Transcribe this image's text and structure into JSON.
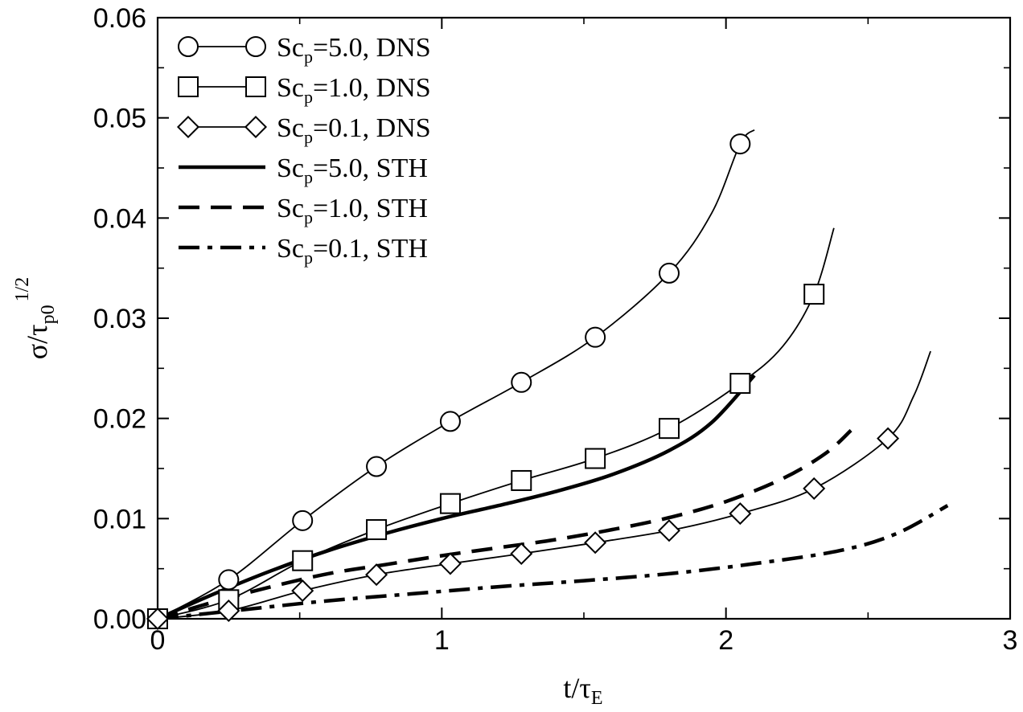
{
  "chart_data": {
    "type": "line",
    "title": "",
    "xlabel": "t/τE",
    "ylabel": "σ/τp0^1/2",
    "xlabel_parts": {
      "main": "t/τ",
      "sub": "E"
    },
    "ylabel_parts": {
      "main": "σ/τ",
      "sub": "p0",
      "sup": "1/2"
    },
    "xlim": [
      0,
      3
    ],
    "ylim": [
      0,
      0.06
    ],
    "xticks": [
      0,
      1,
      2,
      3
    ],
    "xtick_labels": [
      "0",
      "1",
      "2",
      "3"
    ],
    "yticks": [
      0,
      0.01,
      0.02,
      0.03,
      0.04,
      0.05,
      0.06
    ],
    "ytick_labels": [
      "0.00",
      "0.01",
      "0.02",
      "0.03",
      "0.04",
      "0.05",
      "0.06"
    ],
    "grid": false,
    "legend_position": "top-left",
    "series": [
      {
        "name": "Scp=5.0, DNS",
        "label_main": "Sc",
        "label_sub": "p",
        "label_rest": "=5.0, DNS",
        "marker": "circle",
        "style": "thin",
        "points": [
          [
            0,
            0
          ],
          [
            0.25,
            0.0039
          ],
          [
            0.51,
            0.0098
          ],
          [
            0.77,
            0.0152
          ],
          [
            1.03,
            0.0197
          ],
          [
            1.28,
            0.0236
          ],
          [
            1.54,
            0.0281
          ],
          [
            1.8,
            0.0345
          ],
          [
            2.05,
            0.0474
          ]
        ],
        "curve": [
          [
            0,
            0
          ],
          [
            0.25,
            0.0039
          ],
          [
            0.51,
            0.0098
          ],
          [
            0.77,
            0.0152
          ],
          [
            1.03,
            0.0197
          ],
          [
            1.28,
            0.0236
          ],
          [
            1.54,
            0.0281
          ],
          [
            1.8,
            0.0345
          ],
          [
            1.95,
            0.0405
          ],
          [
            2.05,
            0.0474
          ],
          [
            2.1,
            0.0488
          ]
        ]
      },
      {
        "name": "Scp=1.0, DNS",
        "label_main": "Sc",
        "label_sub": "p",
        "label_rest": "=1.0, DNS",
        "marker": "square",
        "style": "thin",
        "points": [
          [
            0,
            0
          ],
          [
            0.25,
            0.0019
          ],
          [
            0.51,
            0.0058
          ],
          [
            0.77,
            0.0089
          ],
          [
            1.03,
            0.0115
          ],
          [
            1.28,
            0.0138
          ],
          [
            1.54,
            0.016
          ],
          [
            1.8,
            0.019
          ],
          [
            2.05,
            0.0235
          ],
          [
            2.31,
            0.0324
          ]
        ],
        "curve": [
          [
            0,
            0
          ],
          [
            0.25,
            0.0019
          ],
          [
            0.51,
            0.0058
          ],
          [
            0.77,
            0.0089
          ],
          [
            1.03,
            0.0115
          ],
          [
            1.28,
            0.0138
          ],
          [
            1.54,
            0.016
          ],
          [
            1.8,
            0.019
          ],
          [
            2.05,
            0.0235
          ],
          [
            2.2,
            0.0272
          ],
          [
            2.31,
            0.0324
          ],
          [
            2.38,
            0.039
          ]
        ]
      },
      {
        "name": "Scp=0.1, DNS",
        "label_main": "Sc",
        "label_sub": "p",
        "label_rest": "=0.1, DNS",
        "marker": "diamond",
        "style": "thin",
        "points": [
          [
            0,
            0
          ],
          [
            0.25,
            0.0008
          ],
          [
            0.51,
            0.0028
          ],
          [
            0.77,
            0.0044
          ],
          [
            1.03,
            0.0055
          ],
          [
            1.28,
            0.0065
          ],
          [
            1.54,
            0.0076
          ],
          [
            1.8,
            0.0088
          ],
          [
            2.05,
            0.0105
          ],
          [
            2.31,
            0.013
          ],
          [
            2.57,
            0.018
          ]
        ],
        "curve": [
          [
            0,
            0
          ],
          [
            0.25,
            0.0008
          ],
          [
            0.51,
            0.0028
          ],
          [
            0.77,
            0.0044
          ],
          [
            1.03,
            0.0055
          ],
          [
            1.28,
            0.0065
          ],
          [
            1.54,
            0.0076
          ],
          [
            1.8,
            0.0088
          ],
          [
            2.05,
            0.0105
          ],
          [
            2.31,
            0.013
          ],
          [
            2.57,
            0.018
          ],
          [
            2.66,
            0.0222
          ],
          [
            2.72,
            0.0267
          ]
        ]
      },
      {
        "name": "Scp=5.0, STH",
        "label_main": "Sc",
        "label_sub": "p",
        "label_rest": "=5.0, STH",
        "marker": "none",
        "style": "solid",
        "curve": [
          [
            0,
            0
          ],
          [
            0.2,
            0.0025
          ],
          [
            0.4,
            0.0048
          ],
          [
            0.6,
            0.0068
          ],
          [
            0.8,
            0.0085
          ],
          [
            1.0,
            0.01
          ],
          [
            1.2,
            0.0113
          ],
          [
            1.4,
            0.0127
          ],
          [
            1.6,
            0.0144
          ],
          [
            1.8,
            0.0168
          ],
          [
            1.95,
            0.0196
          ],
          [
            2.1,
            0.0243
          ]
        ]
      },
      {
        "name": "Scp=1.0, STH",
        "label_main": "Sc",
        "label_sub": "p",
        "label_rest": "=1.0, STH",
        "marker": "none",
        "style": "dashed",
        "curve": [
          [
            0,
            0
          ],
          [
            0.2,
            0.0017
          ],
          [
            0.4,
            0.0032
          ],
          [
            0.6,
            0.0045
          ],
          [
            0.8,
            0.0054
          ],
          [
            1.0,
            0.0063
          ],
          [
            1.2,
            0.0071
          ],
          [
            1.4,
            0.0079
          ],
          [
            1.6,
            0.0089
          ],
          [
            1.8,
            0.0101
          ],
          [
            2.0,
            0.0117
          ],
          [
            2.2,
            0.014
          ],
          [
            2.35,
            0.0165
          ],
          [
            2.44,
            0.0188
          ]
        ]
      },
      {
        "name": "Scp=0.1, STH",
        "label_main": "Sc",
        "label_sub": "p",
        "label_rest": "=0.1, STH",
        "marker": "none",
        "style": "dashdot",
        "curve": [
          [
            0,
            0
          ],
          [
            0.3,
            0.0009
          ],
          [
            0.6,
            0.0018
          ],
          [
            0.9,
            0.0025
          ],
          [
            1.2,
            0.0032
          ],
          [
            1.5,
            0.0038
          ],
          [
            1.8,
            0.0045
          ],
          [
            2.1,
            0.0055
          ],
          [
            2.4,
            0.0068
          ],
          [
            2.6,
            0.0085
          ],
          [
            2.78,
            0.0113
          ]
        ]
      }
    ]
  }
}
